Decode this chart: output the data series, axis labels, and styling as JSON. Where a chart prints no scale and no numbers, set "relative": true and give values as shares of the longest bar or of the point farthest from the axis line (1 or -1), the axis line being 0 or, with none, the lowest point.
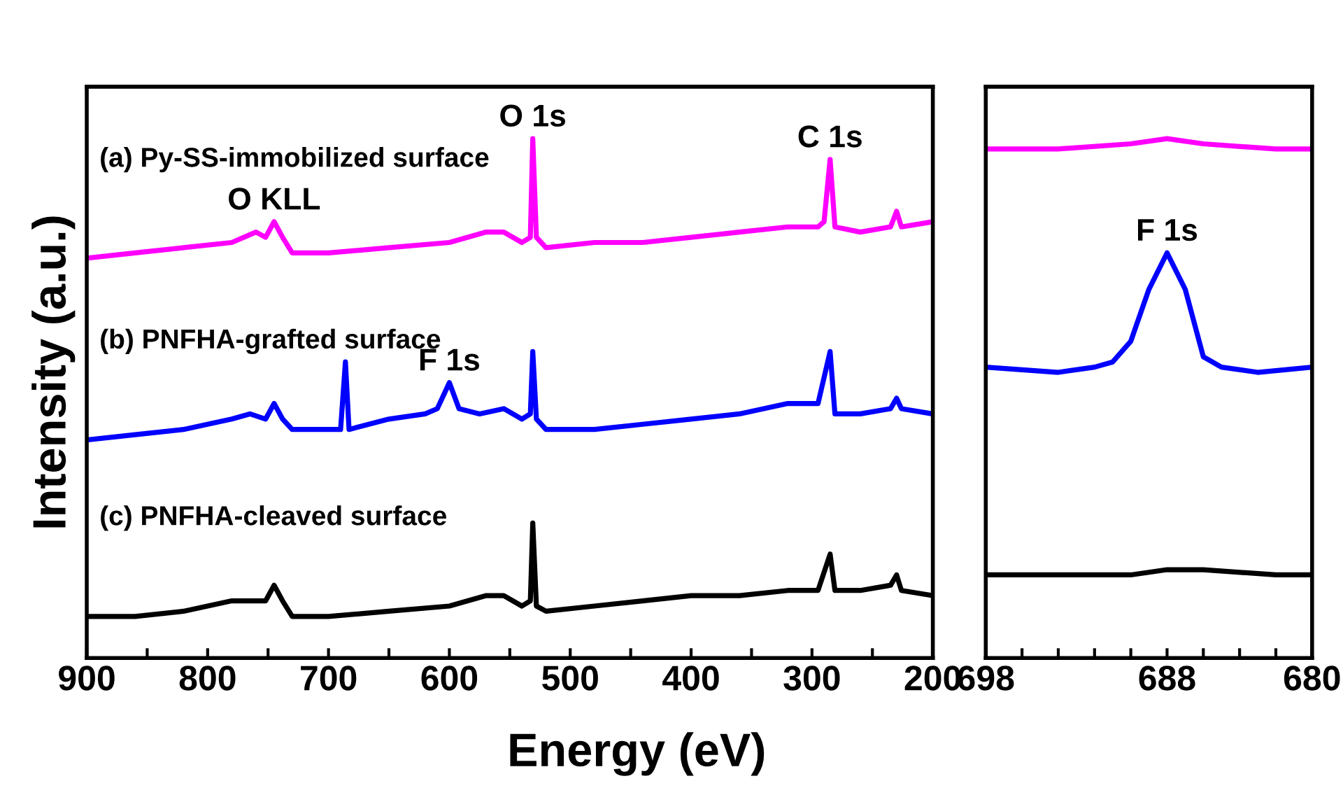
{
  "chart_data": [
    {
      "type": "line",
      "relative": true,
      "ylabel": "Intensity (a.u.)",
      "xlabel": "Energy (eV)",
      "xlim": [
        900,
        200
      ],
      "xticks": [
        900,
        {
          "value": 850,
          "label": null
        },
        800,
        {
          "value": 750,
          "label": null
        },
        700,
        {
          "value": 650,
          "label": null
        },
        600,
        {
          "value": 550,
          "label": null
        },
        500,
        {
          "value": 450,
          "label": null
        },
        400,
        {
          "value": 350,
          "label": null
        },
        300,
        {
          "value": 250,
          "label": null
        },
        200
      ],
      "series": [
        {
          "name": "(a) Py-SS-immobilized surface",
          "color": "#ff00ff",
          "x": [
            900,
            860,
            820,
            780,
            760,
            752,
            745,
            738,
            730,
            700,
            650,
            600,
            570,
            555,
            540,
            533,
            531,
            528,
            520,
            480,
            440,
            400,
            360,
            320,
            295,
            290,
            285,
            281,
            260,
            235,
            230,
            226,
            200
          ],
          "values": [
            0.77,
            0.78,
            0.79,
            0.8,
            0.82,
            0.81,
            0.84,
            0.81,
            0.78,
            0.78,
            0.79,
            0.8,
            0.82,
            0.82,
            0.8,
            0.81,
            1.0,
            0.81,
            0.79,
            0.8,
            0.8,
            0.81,
            0.82,
            0.83,
            0.83,
            0.84,
            0.96,
            0.83,
            0.82,
            0.83,
            0.86,
            0.83,
            0.84
          ]
        },
        {
          "name": "(b) PNFHA-grafted surface",
          "color": "#0000ff",
          "x": [
            900,
            860,
            820,
            780,
            765,
            752,
            745,
            738,
            730,
            700,
            690,
            686,
            683,
            650,
            620,
            610,
            600,
            592,
            575,
            555,
            540,
            533,
            531,
            528,
            520,
            480,
            440,
            400,
            360,
            320,
            295,
            285,
            281,
            260,
            235,
            230,
            226,
            200
          ],
          "values": [
            0.42,
            0.43,
            0.44,
            0.46,
            0.47,
            0.46,
            0.49,
            0.46,
            0.44,
            0.44,
            0.44,
            0.57,
            0.44,
            0.46,
            0.47,
            0.48,
            0.53,
            0.48,
            0.47,
            0.48,
            0.46,
            0.47,
            0.59,
            0.46,
            0.44,
            0.44,
            0.45,
            0.46,
            0.47,
            0.49,
            0.49,
            0.59,
            0.47,
            0.47,
            0.48,
            0.5,
            0.48,
            0.47
          ]
        },
        {
          "name": "(c) PNFHA-cleaved surface",
          "color": "#000000",
          "x": [
            900,
            860,
            820,
            780,
            765,
            752,
            745,
            738,
            730,
            700,
            650,
            600,
            570,
            555,
            540,
            533,
            531,
            528,
            520,
            480,
            440,
            400,
            360,
            320,
            295,
            285,
            281,
            260,
            235,
            230,
            226,
            200
          ],
          "values": [
            0.08,
            0.08,
            0.09,
            0.11,
            0.11,
            0.11,
            0.14,
            0.11,
            0.08,
            0.08,
            0.09,
            0.1,
            0.12,
            0.12,
            0.1,
            0.11,
            0.26,
            0.1,
            0.09,
            0.1,
            0.11,
            0.12,
            0.12,
            0.13,
            0.13,
            0.2,
            0.13,
            0.13,
            0.14,
            0.16,
            0.13,
            0.12
          ]
        }
      ],
      "annotations": [
        {
          "text": "O KLL",
          "x": 745,
          "y": 0.84
        },
        {
          "text": "O 1s",
          "x": 531,
          "y": 1.0
        },
        {
          "text": "C 1s",
          "x": 285,
          "y": 0.96
        },
        {
          "text": "F 1s",
          "x": 600,
          "y": 0.53
        }
      ]
    },
    {
      "type": "line",
      "relative": true,
      "xlim": [
        698,
        680
      ],
      "xticks": [
        698,
        {
          "value": 696,
          "label": null
        },
        {
          "value": 694,
          "label": null
        },
        {
          "value": 692,
          "label": null
        },
        {
          "value": 690,
          "label": null
        },
        688,
        {
          "value": 686,
          "label": null
        },
        {
          "value": 684,
          "label": null
        },
        {
          "value": 682,
          "label": null
        },
        680
      ],
      "series": [
        {
          "color": "#ff00ff",
          "x": [
            698,
            694,
            690,
            688,
            686,
            682,
            680
          ],
          "values": [
            0.98,
            0.98,
            0.99,
            1.0,
            0.99,
            0.98,
            0.98
          ]
        },
        {
          "color": "#0000ff",
          "x": [
            698,
            694,
            692,
            691,
            690,
            689,
            688,
            687,
            686,
            685,
            683,
            680
          ],
          "values": [
            0.56,
            0.55,
            0.56,
            0.57,
            0.61,
            0.71,
            0.78,
            0.71,
            0.58,
            0.56,
            0.55,
            0.56
          ]
        },
        {
          "color": "#000000",
          "x": [
            698,
            694,
            690,
            688,
            686,
            682,
            680
          ],
          "values": [
            0.16,
            0.16,
            0.16,
            0.17,
            0.17,
            0.16,
            0.16
          ]
        }
      ],
      "annotations": [
        {
          "text": "F 1s",
          "x": 688,
          "y": 0.78
        }
      ]
    }
  ]
}
